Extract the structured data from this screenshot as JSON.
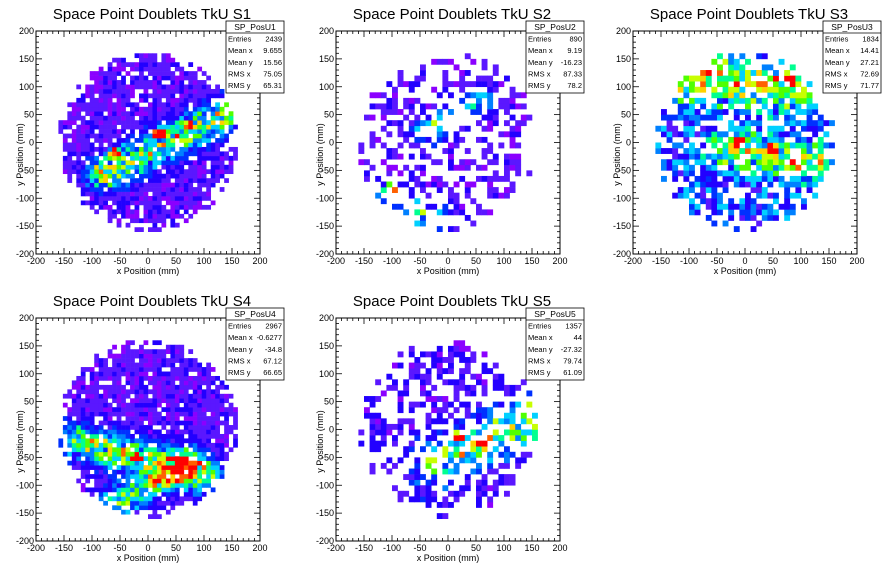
{
  "chart_data": [
    {
      "type": "heatmap",
      "title": "Space Point Doublets TkU S1",
      "xlabel": "x Position (mm)",
      "ylabel": "y Position (mm)",
      "xlim": [
        -200,
        200
      ],
      "ylim": [
        -200,
        200
      ],
      "xticks": [
        -200,
        -150,
        -100,
        -50,
        0,
        50,
        100,
        150,
        200
      ],
      "yticks": [
        -200,
        -150,
        -100,
        -50,
        0,
        50,
        100,
        150,
        200
      ],
      "stats": {
        "name": "SP_PosU1",
        "rows": [
          {
            "label": "Entries",
            "value": "2439"
          },
          {
            "label": "Mean x",
            "value": "9.655"
          },
          {
            "label": "Mean y",
            "value": "15.56"
          },
          {
            "label": "RMS x",
            "value": "75.05"
          },
          {
            "label": "RMS y",
            "value": "65.31"
          }
        ]
      },
      "bins": 50,
      "fill_fraction": 0.88,
      "background_level": 0.12,
      "bands": [
        {
          "x1": -80,
          "y1": -55,
          "x2": 160,
          "y2": 60,
          "strength": 0.6,
          "width": 22
        }
      ],
      "hotspots": [
        {
          "x": 20,
          "y": 15,
          "strength": 0.95
        },
        {
          "x": -60,
          "y": -20,
          "strength": 0.5
        },
        {
          "x": 70,
          "y": 30,
          "strength": 0.5
        }
      ],
      "seed": 11
    },
    {
      "type": "heatmap",
      "title": "Space Point Doublets TkU S2",
      "xlabel": "x Position (mm)",
      "ylabel": "y Position (mm)",
      "xlim": [
        -200,
        200
      ],
      "ylim": [
        -200,
        200
      ],
      "xticks": [
        -200,
        -150,
        -100,
        -50,
        0,
        50,
        100,
        150,
        200
      ],
      "yticks": [
        -200,
        -150,
        -100,
        -50,
        0,
        50,
        100,
        150,
        200
      ],
      "stats": {
        "name": "SP_PosU2",
        "rows": [
          {
            "label": "Entries",
            "value": "890"
          },
          {
            "label": "Mean x",
            "value": "9.19"
          },
          {
            "label": "Mean y",
            "value": "-16.23"
          },
          {
            "label": "RMS x",
            "value": "87.33"
          },
          {
            "label": "RMS y",
            "value": "78.2"
          }
        ]
      },
      "bins": 40,
      "fill_fraction": 0.42,
      "background_level": 0.12,
      "bands": [
        {
          "x1": -120,
          "y1": -100,
          "x2": -20,
          "y2": -140,
          "strength": 0.5,
          "width": 18
        },
        {
          "x1": -40,
          "y1": 20,
          "x2": 60,
          "y2": 70,
          "strength": 0.45,
          "width": 16
        }
      ],
      "hotspots": [
        {
          "x": -30,
          "y": -135,
          "strength": 0.6
        },
        {
          "x": -100,
          "y": -80,
          "strength": 0.5
        }
      ],
      "seed": 23
    },
    {
      "type": "heatmap",
      "title": "Space Point Doublets TkU S3",
      "xlabel": "x Position (mm)",
      "ylabel": "y Position (mm)",
      "xlim": [
        -200,
        200
      ],
      "ylim": [
        -200,
        200
      ],
      "xticks": [
        -200,
        -150,
        -100,
        -50,
        0,
        50,
        100,
        150,
        200
      ],
      "yticks": [
        -200,
        -150,
        -100,
        -50,
        0,
        50,
        100,
        150,
        200
      ],
      "stats": {
        "name": "SP_PosU3",
        "rows": [
          {
            "label": "Entries",
            "value": "1834"
          },
          {
            "label": "Mean x",
            "value": "14.41"
          },
          {
            "label": "Mean y",
            "value": "27.21"
          },
          {
            "label": "RMS x",
            "value": "72.69"
          },
          {
            "label": "RMS y",
            "value": "71.77"
          }
        ]
      },
      "bins": 40,
      "fill_fraction": 0.72,
      "background_level": 0.3,
      "bands": [
        {
          "x1": -100,
          "y1": 120,
          "x2": 150,
          "y2": 90,
          "strength": 0.45,
          "width": 30
        },
        {
          "x1": -30,
          "y1": -10,
          "x2": 120,
          "y2": -40,
          "strength": 0.45,
          "width": 22
        }
      ],
      "hotspots": [
        {
          "x": -10,
          "y": 0,
          "strength": 0.95
        },
        {
          "x": 80,
          "y": 110,
          "strength": 0.8
        },
        {
          "x": 50,
          "y": -10,
          "strength": 0.6
        }
      ],
      "seed": 37
    },
    {
      "type": "heatmap",
      "title": "Space Point Doublets TkU S4",
      "xlabel": "x Position (mm)",
      "ylabel": "y Position (mm)",
      "xlim": [
        -200,
        200
      ],
      "ylim": [
        -200,
        200
      ],
      "xticks": [
        -200,
        -150,
        -100,
        -50,
        0,
        50,
        100,
        150,
        200
      ],
      "yticks": [
        -200,
        -150,
        -100,
        -50,
        0,
        50,
        100,
        150,
        200
      ],
      "stats": {
        "name": "SP_PosU4",
        "rows": [
          {
            "label": "Entries",
            "value": "2967"
          },
          {
            "label": "Mean x",
            "value": "-0.6277"
          },
          {
            "label": "Mean y",
            "value": "-34.8"
          },
          {
            "label": "RMS x",
            "value": "67.12"
          },
          {
            "label": "RMS y",
            "value": "66.65"
          }
        ]
      },
      "bins": 50,
      "fill_fraction": 0.9,
      "background_level": 0.12,
      "bands": [
        {
          "x1": -130,
          "y1": -20,
          "x2": 100,
          "y2": -80,
          "strength": 0.6,
          "width": 22
        },
        {
          "x1": -70,
          "y1": -140,
          "x2": 70,
          "y2": -60,
          "strength": 0.5,
          "width": 20
        }
      ],
      "hotspots": [
        {
          "x": 50,
          "y": -70,
          "strength": 0.95
        },
        {
          "x": -20,
          "y": -50,
          "strength": 0.6
        }
      ],
      "seed": 53
    },
    {
      "type": "heatmap",
      "title": "Space Point Doublets TkU S5",
      "xlabel": "x Position (mm)",
      "ylabel": "y Position (mm)",
      "xlim": [
        -200,
        200
      ],
      "ylim": [
        -200,
        200
      ],
      "xticks": [
        -200,
        -150,
        -100,
        -50,
        0,
        50,
        100,
        150,
        200
      ],
      "yticks": [
        -200,
        -150,
        -100,
        -50,
        0,
        50,
        100,
        150,
        200
      ],
      "stats": {
        "name": "SP_PosU5",
        "rows": [
          {
            "label": "Entries",
            "value": "1357"
          },
          {
            "label": "Mean x",
            "value": "44"
          },
          {
            "label": "Mean y",
            "value": "-27.32"
          },
          {
            "label": "RMS x",
            "value": "79.74"
          },
          {
            "label": "RMS y",
            "value": "61.09"
          }
        ]
      },
      "bins": 40,
      "fill_fraction": 0.5,
      "background_level": 0.15,
      "bands": [
        {
          "x1": -20,
          "y1": -60,
          "x2": 150,
          "y2": 20,
          "strength": 0.55,
          "width": 28
        }
      ],
      "hotspots": [
        {
          "x": 60,
          "y": -20,
          "strength": 0.75
        },
        {
          "x": 20,
          "y": -10,
          "strength": 0.6
        }
      ],
      "seed": 71
    }
  ],
  "palette": [
    "#8b00ff",
    "#5a17ff",
    "#2200ff",
    "#0030ff",
    "#0080ff",
    "#00d0ff",
    "#00ff90",
    "#50ff00",
    "#c8ff00",
    "#ffd000",
    "#ff6000",
    "#ff0000"
  ]
}
